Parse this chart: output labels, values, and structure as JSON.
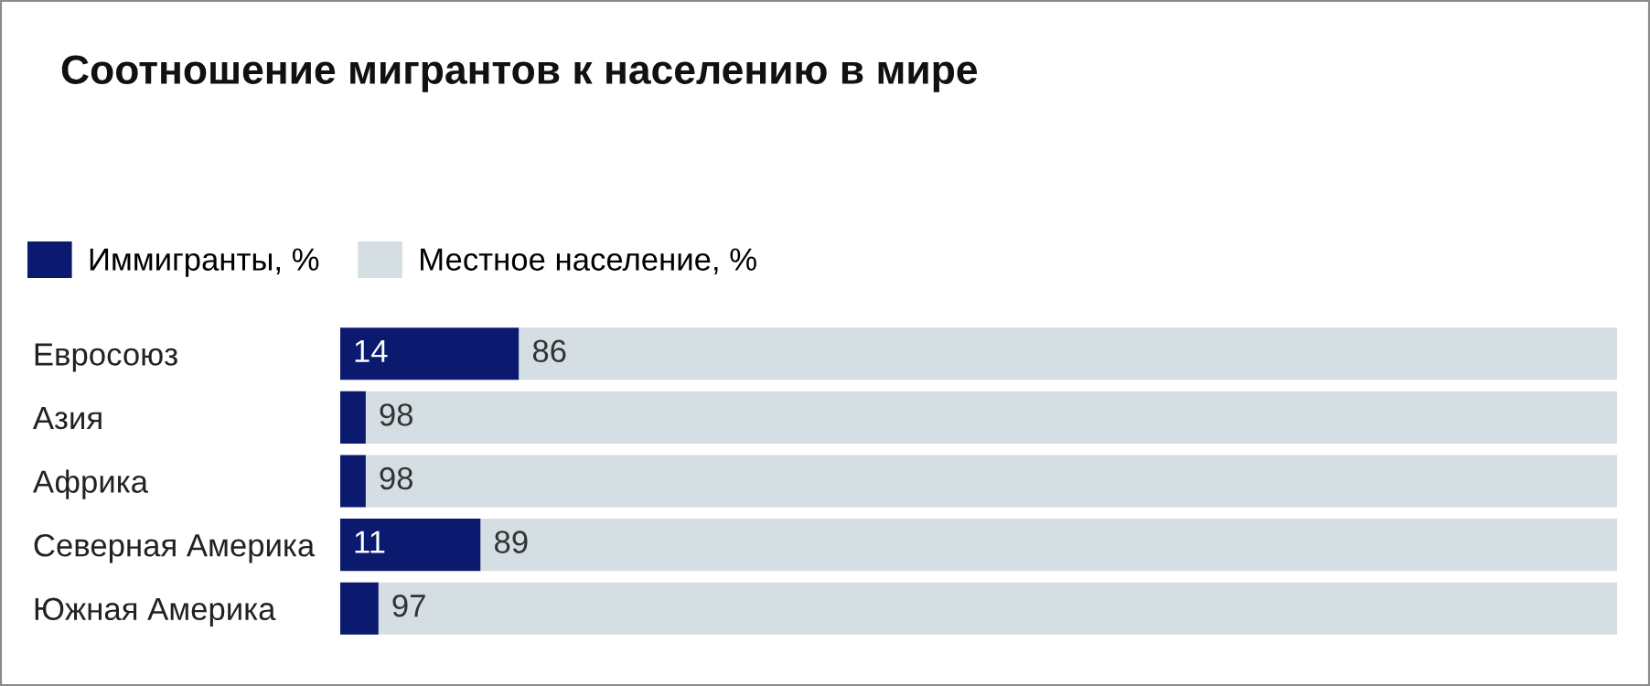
{
  "chart_data": {
    "type": "bar",
    "orientation": "horizontal",
    "stacked": true,
    "title": "Соотношение мигрантов к населению в мире",
    "categories": [
      "Евросоюз",
      "Азия",
      "Африка",
      "Северная Америка",
      "Южная Америка"
    ],
    "series": [
      {
        "name": "Иммигранты, %",
        "color": "#0b1a6e",
        "values": [
          14,
          2,
          2,
          11,
          3
        ],
        "value_labels": [
          "14",
          null,
          null,
          "11",
          null
        ]
      },
      {
        "name": "Местное население, %",
        "color": "#d4dee3",
        "values": [
          86,
          98,
          98,
          89,
          97
        ],
        "value_labels": [
          "86",
          "98",
          "98",
          "89",
          "97"
        ]
      }
    ],
    "legend": "top left",
    "grid": false
  }
}
